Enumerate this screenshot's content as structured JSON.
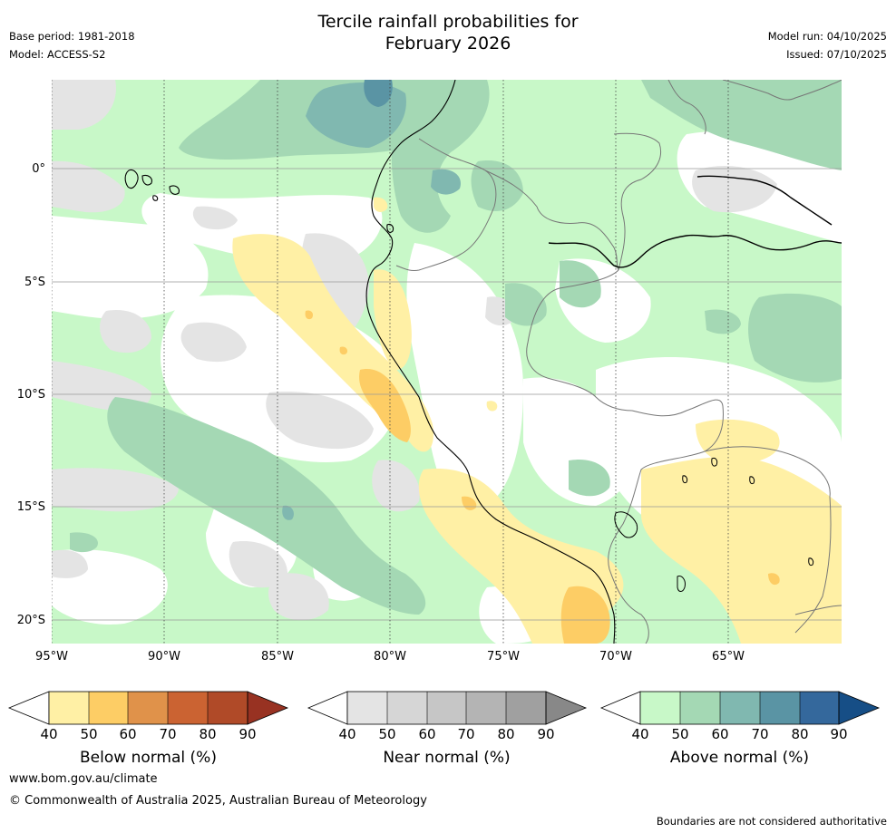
{
  "header": {
    "title_line1": "Tercile rainfall probabilities for",
    "title_line2": "February 2026",
    "base_period": "Base period: 1981-2018",
    "model": "Model: ACCESS-S2",
    "model_run": "Model run: 04/10/2025",
    "issued": "Issued: 07/10/2025"
  },
  "map": {
    "lat_labels": [
      "0°",
      "5°S",
      "10°S",
      "15°S",
      "20°S"
    ],
    "lon_labels": [
      "95°W",
      "90°W",
      "85°W",
      "80°W",
      "75°W",
      "70°W",
      "65°W"
    ],
    "region": "South America west coast (Ecuador, Peru, northern Chile, Bolivia, western Brazil)"
  },
  "legends": [
    {
      "caption": "Below normal (%)",
      "ticks": [
        "40",
        "50",
        "60",
        "70",
        "80",
        "90"
      ],
      "colors": [
        "#fff0a5",
        "#fdcd65",
        "#e0924a",
        "#cb6332",
        "#b04a28",
        "#983222"
      ]
    },
    {
      "caption": "Near normal (%)",
      "ticks": [
        "40",
        "50",
        "60",
        "70",
        "80",
        "90"
      ],
      "colors": [
        "#e4e4e4",
        "#d6d6d6",
        "#c6c6c6",
        "#b4b4b4",
        "#a0a0a0",
        "#888888"
      ]
    },
    {
      "caption": "Above normal (%)",
      "ticks": [
        "40",
        "50",
        "60",
        "70",
        "80",
        "90"
      ],
      "colors": [
        "#c8f8c8",
        "#a4d8b4",
        "#80b8b0",
        "#5a94a4",
        "#34689c",
        "#164e86"
      ]
    }
  ],
  "footer": {
    "website": "www.bom.gov.au/climate",
    "copyright": "© Commonwealth of Australia 2025, Australian Bureau of Meteorology",
    "disclaimer": "Boundaries are not considered authoritative"
  }
}
